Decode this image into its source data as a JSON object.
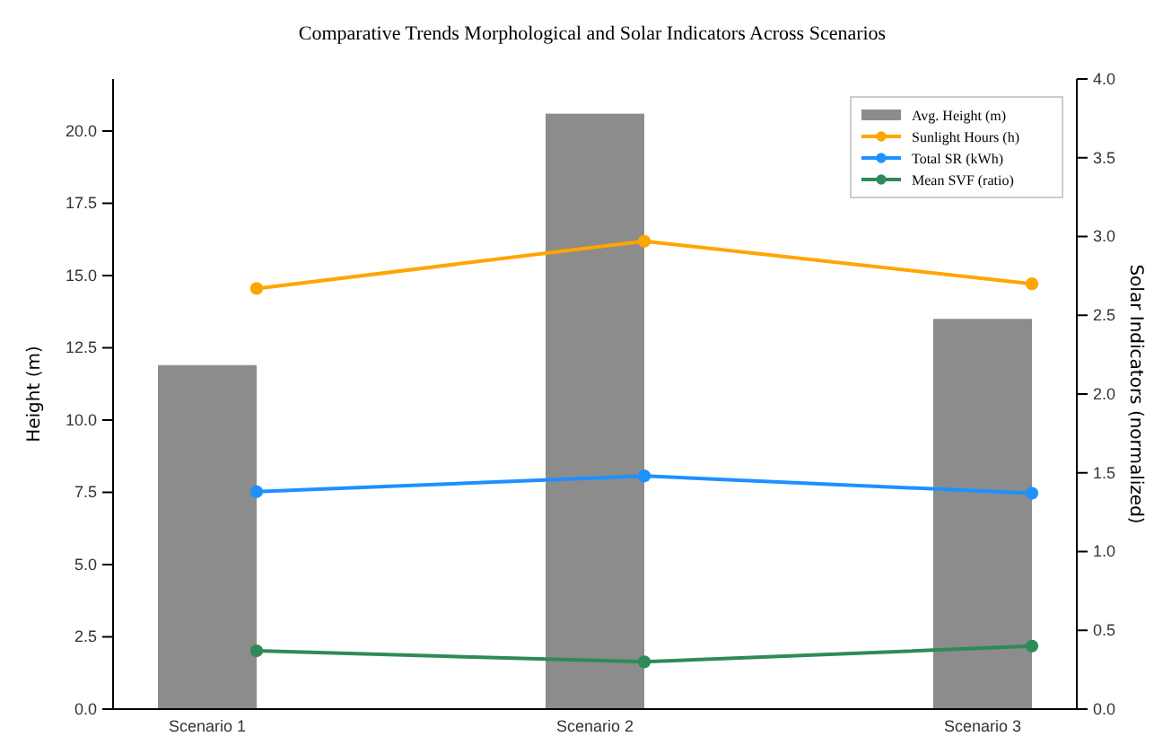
{
  "chart_data": {
    "type": "bar",
    "title": "Comparative Trends Morphological and Solar Indicators Across Scenarios",
    "ylabel": "Height (m)",
    "y2label": "Solar Indicators (normalized)",
    "categories": [
      "Scenario 1",
      "Scenario 2",
      "Scenario 3"
    ],
    "series": [
      {
        "name": "Avg. Height (m)",
        "color": "#8c8c8c",
        "values": [
          11.9,
          20.6,
          13.5
        ]
      },
      {
        "name": "Sunlight Hours (h)",
        "type": "line",
        "axis": "y2",
        "color": "#ffa500",
        "values": [
          2.67,
          2.97,
          2.7
        ]
      },
      {
        "name": "Total SR (kWh)",
        "type": "line",
        "axis": "y2",
        "color": "#1e90ff",
        "values": [
          1.38,
          1.48,
          1.37
        ]
      },
      {
        "name": "Mean SVF (ratio)",
        "type": "line",
        "axis": "y2",
        "color": "#2e8b57",
        "values": [
          0.37,
          0.3,
          0.4
        ]
      }
    ],
    "ylim": [
      0,
      21.8
    ],
    "yticks": [
      {
        "value": 0,
        "label": "0.0"
      },
      {
        "value": 2.5,
        "label": "2.5"
      },
      {
        "value": 5,
        "label": "5.0"
      },
      {
        "value": 7.5,
        "label": "7.5"
      },
      {
        "value": 10,
        "label": "10.0"
      },
      {
        "value": 12.5,
        "label": "12.5"
      },
      {
        "value": 15,
        "label": "15.0"
      },
      {
        "value": 17.5,
        "label": "17.5"
      },
      {
        "value": 20,
        "label": "20.0"
      }
    ],
    "y2lim": [
      0,
      4
    ],
    "y2ticks": [
      {
        "value": 0,
        "label": "0.0"
      },
      {
        "value": 0.5,
        "label": "0.5"
      },
      {
        "value": 1,
        "label": "1.0"
      },
      {
        "value": 1.5,
        "label": "1.5"
      },
      {
        "value": 2,
        "label": "2.0"
      },
      {
        "value": 2.5,
        "label": "2.5"
      },
      {
        "value": 3,
        "label": "3.0"
      },
      {
        "value": 3.5,
        "label": "3.5"
      },
      {
        "value": 4,
        "label": "4.0"
      }
    ],
    "legend": "top right",
    "marker": "circle"
  }
}
